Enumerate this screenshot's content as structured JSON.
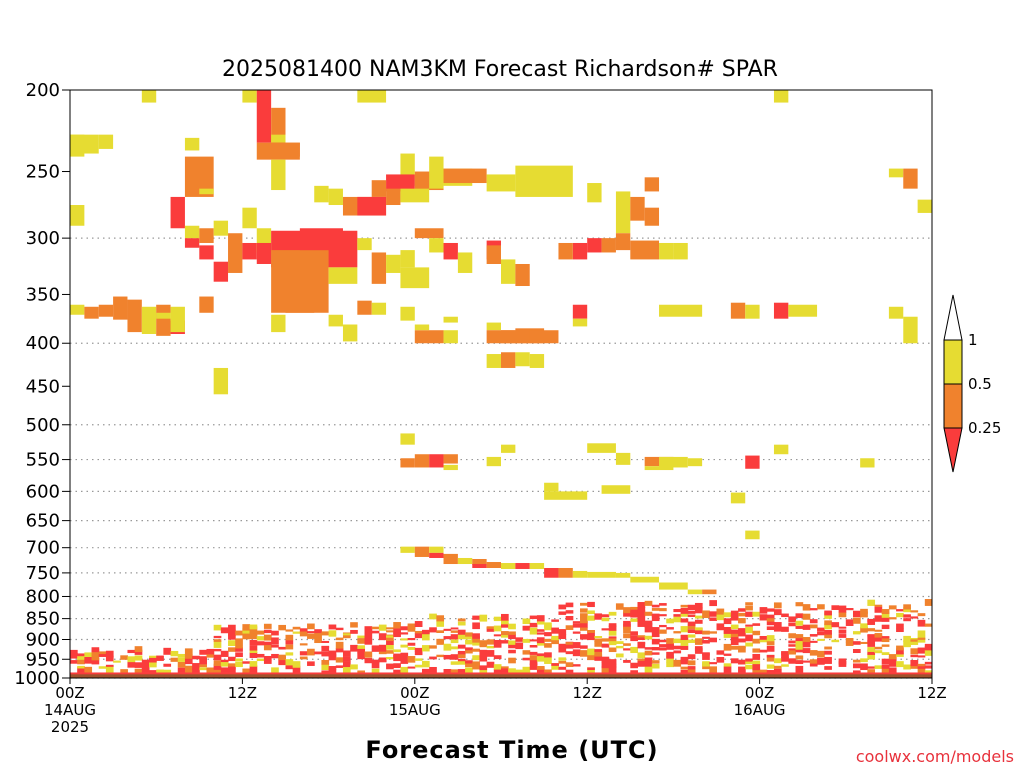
{
  "chart_data": {
    "type": "heatmap",
    "title": "2025081400 NAM3KM Forecast Richardson# SPAR",
    "xlabel": "Forecast Time (UTC)",
    "ylabel": "",
    "credit": "coolwx.com/models",
    "y_axis": {
      "scale": "log-pressure",
      "range": [
        1000,
        200
      ],
      "ticks": [
        200,
        250,
        300,
        350,
        400,
        450,
        500,
        550,
        600,
        650,
        700,
        750,
        800,
        850,
        900,
        950,
        1000
      ],
      "gridlines": [
        300,
        400,
        500,
        550,
        600,
        650,
        700,
        750,
        800,
        850,
        900,
        950,
        1000
      ]
    },
    "x_axis": {
      "unit": "forecast hour",
      "range": [
        0,
        60
      ],
      "ticks": [
        {
          "hour": 0,
          "lines": [
            "00Z",
            "14AUG",
            "2025"
          ]
        },
        {
          "hour": 12,
          "lines": [
            "12Z"
          ]
        },
        {
          "hour": 24,
          "lines": [
            "00Z",
            "15AUG"
          ]
        },
        {
          "hour": 36,
          "lines": [
            "12Z"
          ]
        },
        {
          "hour": 48,
          "lines": [
            "00Z",
            "16AUG"
          ]
        },
        {
          "hour": 60,
          "lines": [
            "12Z"
          ]
        }
      ]
    },
    "legend": {
      "placement": "right",
      "labels": [
        "1",
        "0.5",
        "0.25"
      ],
      "bins": [
        {
          "range": "0.5 - 1",
          "color": "#e6dc32"
        },
        {
          "range": "0.25 - 0.5",
          "color": "#f0822d"
        },
        {
          "range": "< 0.25",
          "color": "#fa3c3c"
        }
      ]
    },
    "colors": {
      "yellow": "#e6dc32",
      "orange": "#f0822d",
      "red": "#fa3c3c",
      "ground": "#a0522d"
    },
    "cells": [
      [
        "y",
        0,
        1,
        240,
        226
      ],
      [
        "y",
        5,
        6,
        207,
        200
      ],
      [
        "y",
        12,
        13,
        207,
        200
      ],
      [
        "y",
        20,
        22,
        207,
        200
      ],
      [
        "y",
        49,
        50,
        207,
        200
      ],
      [
        "r",
        13,
        14,
        200,
        231
      ],
      [
        "o",
        14,
        15,
        210,
        231
      ],
      [
        "y",
        14,
        15,
        235,
        226
      ],
      [
        "y",
        0,
        2,
        226,
        238
      ],
      [
        "y",
        2,
        3,
        226,
        235
      ],
      [
        "y",
        8,
        9,
        228,
        236
      ],
      [
        "r",
        14,
        15,
        231,
        239
      ],
      [
        "o",
        13,
        16,
        231,
        242
      ],
      [
        "o",
        15,
        16,
        231,
        240
      ],
      [
        "o",
        8,
        10,
        240,
        268
      ],
      [
        "y",
        9,
        10,
        266,
        262
      ],
      [
        "y",
        14,
        15,
        242,
        263
      ],
      [
        "y",
        23,
        24,
        238,
        260
      ],
      [
        "r",
        22,
        24,
        252,
        264
      ],
      [
        "o",
        24,
        26,
        250,
        263
      ],
      [
        "o",
        21,
        22,
        256,
        268
      ],
      [
        "o",
        19,
        22,
        268,
        282
      ],
      [
        "r",
        20,
        22,
        268,
        282
      ],
      [
        "o",
        22,
        23,
        262,
        274
      ],
      [
        "y",
        17,
        18,
        260,
        272
      ],
      [
        "y",
        18,
        19,
        262,
        274
      ],
      [
        "y",
        23,
        25,
        262,
        272
      ],
      [
        "y",
        25,
        26,
        240,
        262
      ],
      [
        "y",
        26,
        28,
        260,
        248
      ],
      [
        "o",
        26,
        29,
        248,
        258
      ],
      [
        "y",
        29,
        31,
        252,
        264
      ],
      [
        "y",
        31,
        35,
        246,
        268
      ],
      [
        "y",
        36,
        37,
        258,
        272
      ],
      [
        "y",
        38,
        39,
        264,
        296
      ],
      [
        "o",
        39,
        40,
        268,
        286
      ],
      [
        "o",
        40,
        41,
        276,
        290
      ],
      [
        "o",
        40,
        41,
        254,
        264
      ],
      [
        "y",
        57,
        58,
        248,
        254
      ],
      [
        "o",
        58,
        59,
        248,
        262
      ],
      [
        "y",
        59,
        60,
        270,
        280
      ],
      [
        "y",
        0,
        1,
        274,
        290
      ],
      [
        "r",
        7,
        8,
        268,
        292
      ],
      [
        "r",
        8,
        9,
        300,
        308
      ],
      [
        "y",
        8,
        9,
        290,
        300
      ],
      [
        "o",
        9,
        10,
        292,
        304
      ],
      [
        "y",
        10,
        11,
        286,
        298
      ],
      [
        "y",
        12,
        13,
        276,
        292
      ],
      [
        "r",
        9,
        10,
        306,
        318
      ],
      [
        "r",
        10,
        11,
        320,
        338
      ],
      [
        "o",
        11,
        12,
        296,
        330
      ],
      [
        "r",
        12,
        13,
        304,
        318
      ],
      [
        "y",
        13,
        14,
        292,
        312
      ],
      [
        "r",
        13,
        14,
        304,
        322
      ],
      [
        "r",
        14,
        20,
        294,
        325
      ],
      [
        "o",
        14,
        18,
        310,
        368
      ],
      [
        "r",
        16,
        19,
        292,
        310
      ],
      [
        "y",
        18,
        20,
        325,
        340
      ],
      [
        "y",
        20,
        21,
        300,
        310
      ],
      [
        "o",
        21,
        22,
        312,
        340
      ],
      [
        "y",
        22,
        23,
        314,
        330
      ],
      [
        "y",
        23,
        24,
        310,
        325
      ],
      [
        "y",
        23,
        25,
        325,
        344
      ],
      [
        "o",
        24,
        26,
        292,
        300
      ],
      [
        "y",
        25,
        26,
        300,
        312
      ],
      [
        "r",
        26,
        27,
        304,
        318
      ],
      [
        "y",
        27,
        28,
        312,
        330
      ],
      [
        "r",
        29,
        30,
        302,
        318
      ],
      [
        "o",
        29,
        30,
        306,
        322
      ],
      [
        "y",
        30,
        31,
        318,
        340
      ],
      [
        "o",
        31,
        32,
        322,
        342
      ],
      [
        "r",
        35,
        36,
        304,
        318
      ],
      [
        "o",
        34,
        35,
        304,
        318
      ],
      [
        "r",
        36,
        37,
        300,
        312
      ],
      [
        "o",
        37,
        38,
        300,
        312
      ],
      [
        "o",
        38,
        39,
        296,
        310
      ],
      [
        "o",
        39,
        41,
        302,
        318
      ],
      [
        "y",
        41,
        42,
        304,
        318
      ],
      [
        "y",
        42,
        43,
        304,
        318
      ],
      [
        "y",
        0,
        1,
        360,
        370
      ],
      [
        "o",
        1,
        2,
        362,
        374
      ],
      [
        "o",
        2,
        3,
        360,
        372
      ],
      [
        "o",
        3,
        4,
        352,
        375
      ],
      [
        "o",
        4,
        5,
        355,
        388
      ],
      [
        "y",
        5,
        6,
        362,
        390
      ],
      [
        "o",
        6,
        7,
        360,
        392
      ],
      [
        "y",
        6,
        7,
        368,
        374
      ],
      [
        "r",
        7,
        8,
        376,
        390
      ],
      [
        "y",
        7,
        8,
        362,
        388
      ],
      [
        "o",
        9,
        10,
        352,
        368
      ],
      [
        "y",
        14,
        15,
        370,
        388
      ],
      [
        "o",
        15,
        17,
        355,
        368
      ],
      [
        "y",
        18,
        19,
        370,
        382
      ],
      [
        "o",
        20,
        21,
        356,
        370
      ],
      [
        "y",
        21,
        22,
        358,
        370
      ],
      [
        "y",
        23,
        24,
        362,
        376
      ],
      [
        "r",
        35,
        36,
        360,
        374
      ],
      [
        "y",
        35,
        36,
        374,
        382
      ],
      [
        "y",
        41,
        44,
        360,
        372
      ],
      [
        "o",
        46,
        47,
        358,
        374
      ],
      [
        "y",
        47,
        48,
        360,
        374
      ],
      [
        "r",
        49,
        50,
        358,
        374
      ],
      [
        "y",
        50,
        52,
        360,
        372
      ],
      [
        "y",
        57,
        58,
        362,
        374
      ],
      [
        "y",
        58,
        59,
        372,
        400
      ],
      [
        "y",
        19,
        20,
        380,
        398
      ],
      [
        "y",
        29,
        30,
        378,
        386
      ],
      [
        "o",
        29,
        31,
        386,
        400
      ],
      [
        "o",
        30,
        32,
        386,
        400
      ],
      [
        "o",
        31,
        33,
        384,
        400
      ],
      [
        "o",
        32,
        34,
        386,
        400
      ],
      [
        "y",
        26,
        27,
        372,
        378
      ],
      [
        "o",
        24,
        26,
        386,
        400
      ],
      [
        "y",
        24,
        25,
        380,
        386
      ],
      [
        "y",
        26,
        27,
        386,
        400
      ],
      [
        "y",
        10,
        11,
        428,
        460
      ],
      [
        "y",
        29,
        30,
        412,
        428
      ],
      [
        "o",
        30,
        31,
        410,
        428
      ],
      [
        "y",
        31,
        32,
        410,
        426
      ],
      [
        "y",
        32,
        33,
        412,
        428
      ],
      [
        "y",
        23,
        24,
        512,
        528
      ],
      [
        "o",
        23,
        24,
        548,
        562
      ],
      [
        "o",
        24,
        25,
        542,
        562
      ],
      [
        "r",
        25,
        26,
        542,
        562
      ],
      [
        "o",
        26,
        27,
        542,
        556
      ],
      [
        "y",
        26,
        27,
        558,
        566
      ],
      [
        "y",
        29,
        30,
        546,
        560
      ],
      [
        "y",
        30,
        31,
        528,
        540
      ],
      [
        "y",
        36,
        38,
        526,
        540
      ],
      [
        "y",
        38,
        39,
        540,
        558
      ],
      [
        "o",
        40,
        42,
        546,
        560
      ],
      [
        "y",
        40,
        42,
        560,
        566
      ],
      [
        "y",
        41,
        43,
        546,
        562
      ],
      [
        "y",
        43,
        44,
        548,
        560
      ],
      [
        "r",
        47,
        48,
        544,
        564
      ],
      [
        "y",
        49,
        50,
        528,
        542
      ],
      [
        "y",
        55,
        56,
        548,
        562
      ],
      [
        "y",
        33,
        34,
        586,
        600
      ],
      [
        "y",
        33,
        36,
        600,
        614
      ],
      [
        "y",
        37,
        39,
        590,
        604
      ],
      [
        "y",
        46,
        47,
        602,
        620
      ],
      [
        "y",
        47,
        48,
        668,
        684
      ],
      [
        "y",
        23,
        24,
        698,
        710
      ],
      [
        "o",
        24,
        25,
        698,
        718
      ],
      [
        "y",
        25,
        26,
        698,
        710
      ],
      [
        "r",
        25,
        26,
        710,
        720
      ],
      [
        "o",
        26,
        27,
        712,
        732
      ],
      [
        "y",
        27,
        28,
        720,
        732
      ],
      [
        "o",
        28,
        29,
        722,
        734
      ],
      [
        "r",
        28,
        29,
        732,
        740
      ],
      [
        "o",
        29,
        30,
        728,
        740
      ],
      [
        "y",
        30,
        31,
        730,
        742
      ],
      [
        "r",
        31,
        32,
        730,
        742
      ],
      [
        "y",
        32,
        33,
        730,
        742
      ],
      [
        "r",
        33,
        34,
        740,
        760
      ],
      [
        "o",
        34,
        35,
        740,
        760
      ],
      [
        "y",
        35,
        36,
        746,
        760
      ],
      [
        "y",
        36,
        38,
        748,
        760
      ],
      [
        "y",
        38,
        39,
        750,
        760
      ],
      [
        "y",
        39,
        41,
        758,
        770
      ],
      [
        "y",
        41,
        43,
        770,
        785
      ],
      [
        "y",
        43,
        44,
        785,
        795
      ],
      [
        "o",
        44,
        45,
        785,
        795
      ]
    ]
  }
}
